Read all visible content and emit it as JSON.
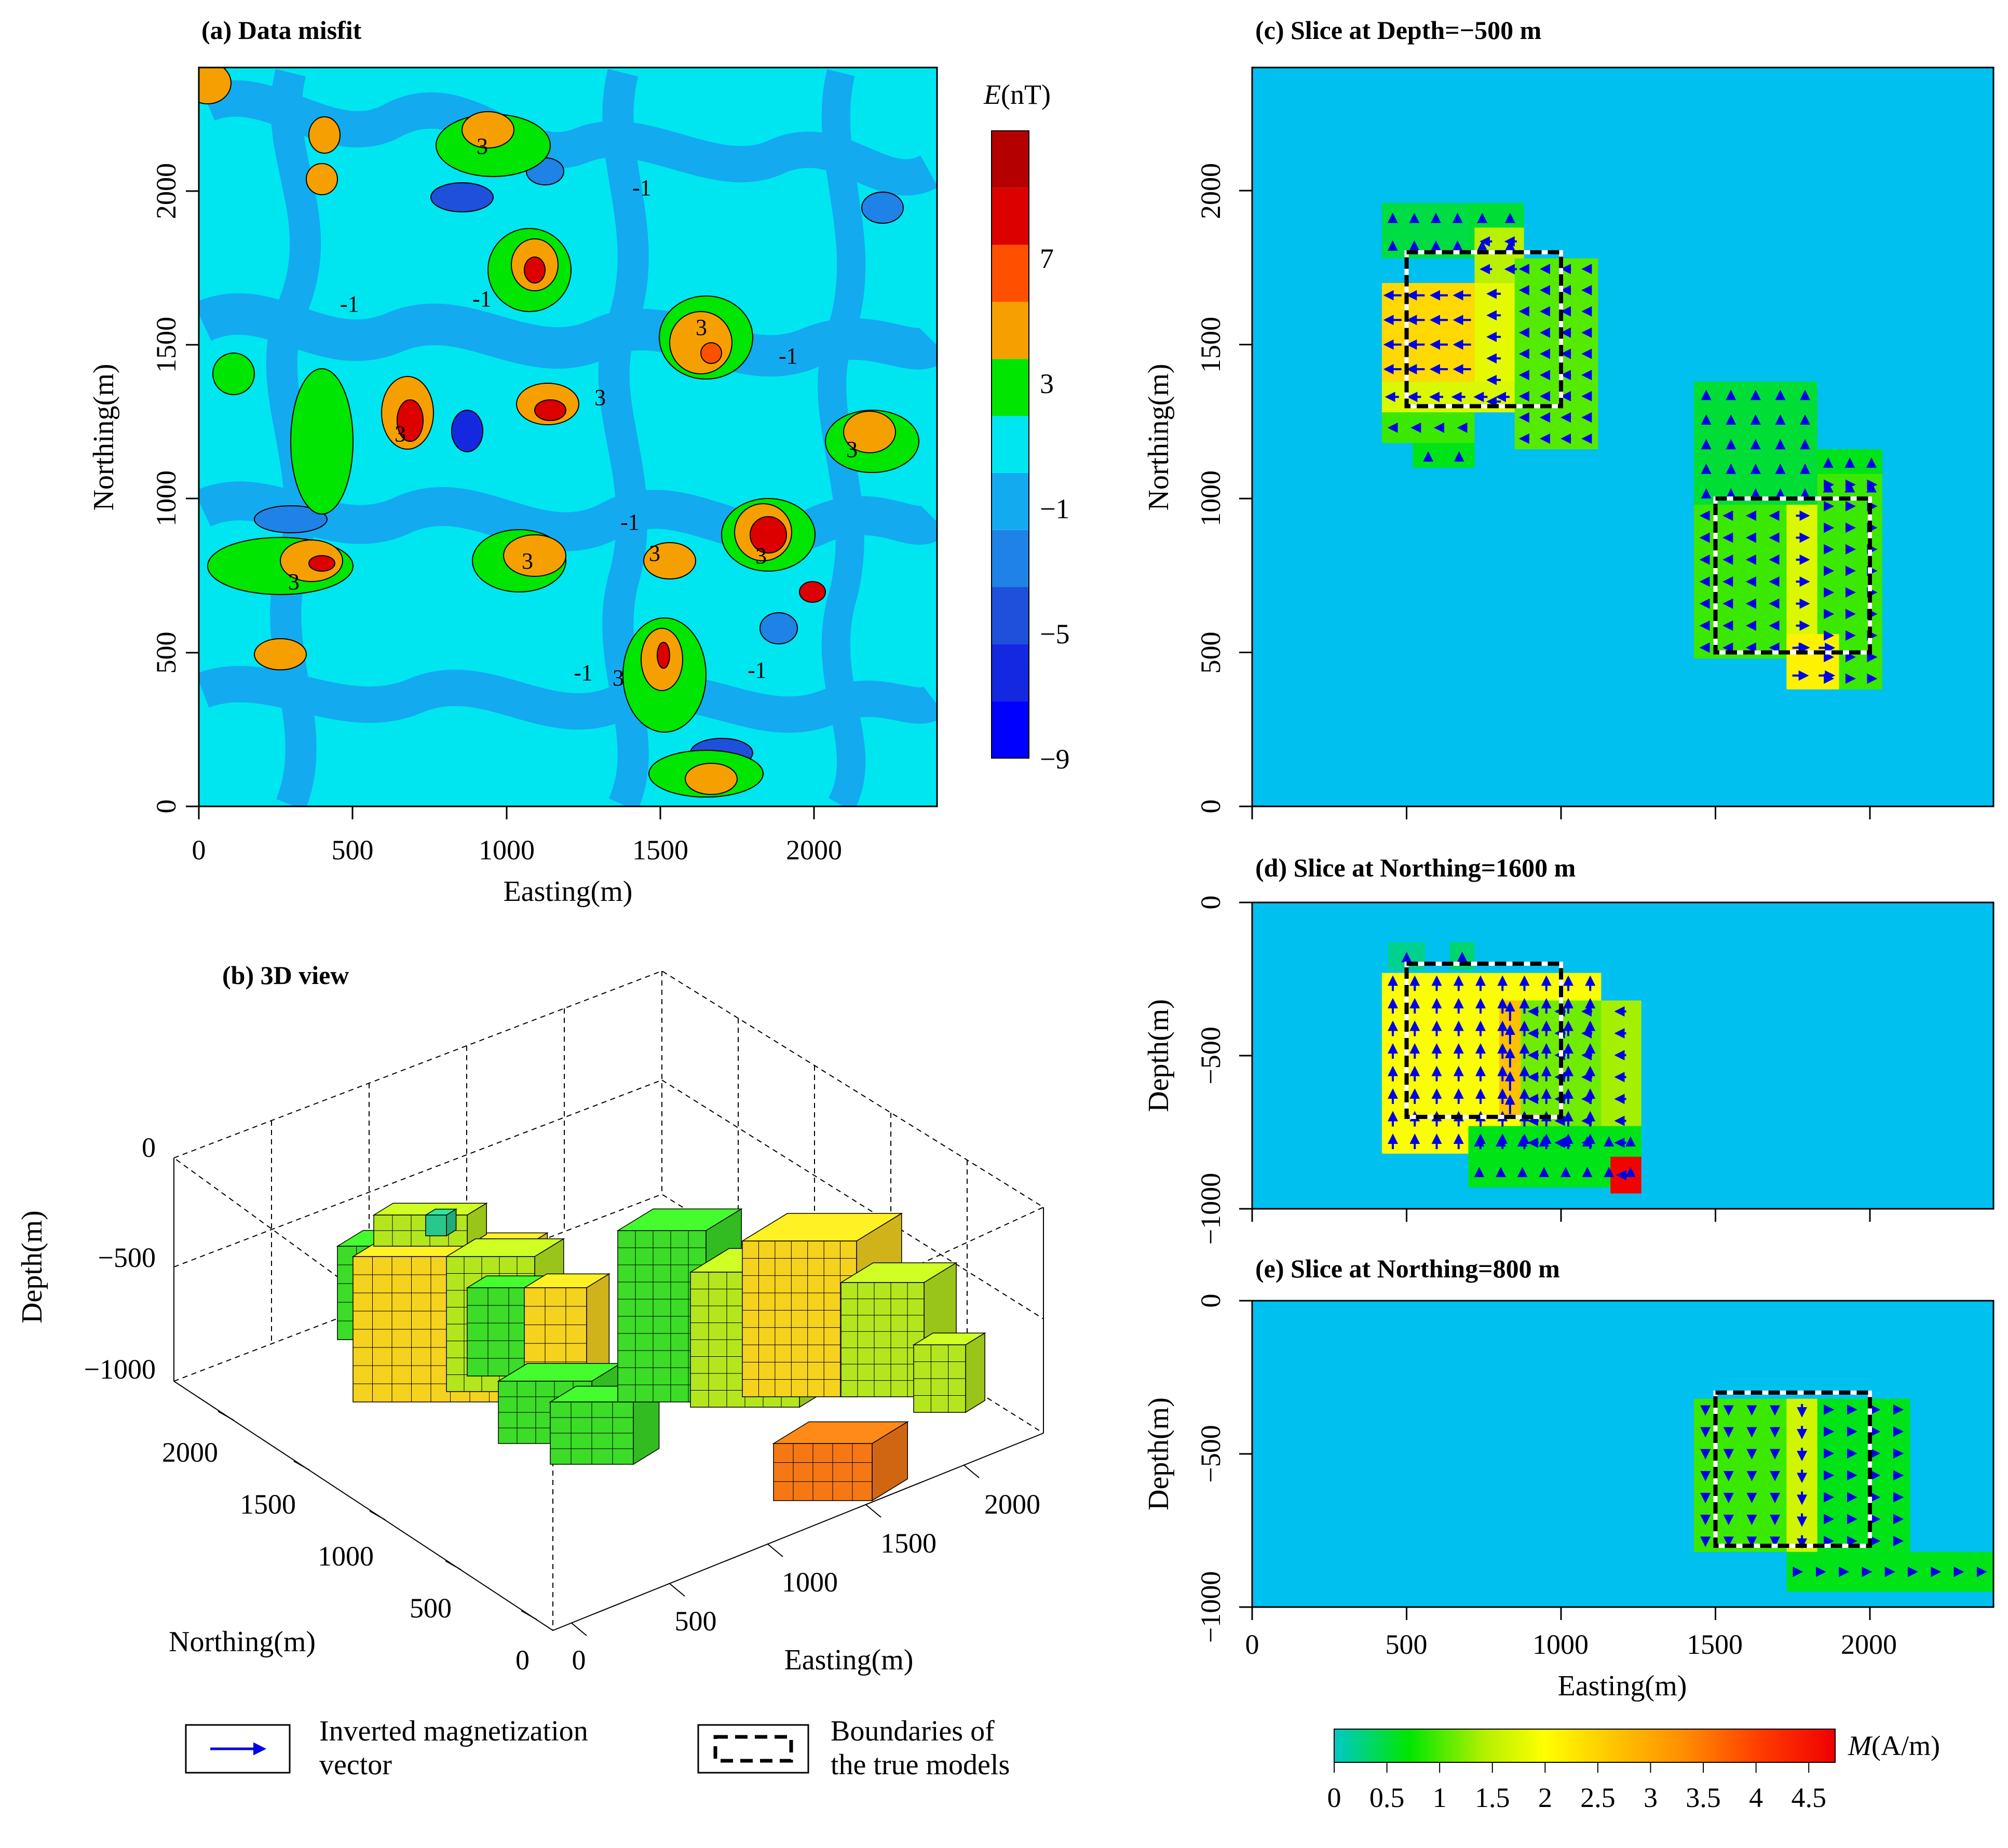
{
  "chart_data": [
    {
      "id": "a",
      "type": "heatmap",
      "title": "(a) Data misfit",
      "xlabel": "Easting(m)",
      "ylabel": "Northing(m)",
      "xlim": [
        0,
        2400
      ],
      "ylim": [
        0,
        2400
      ],
      "xticks": [
        "0",
        "500",
        "1000",
        "1500",
        "2000"
      ],
      "yticks": [
        "0",
        "500",
        "1000",
        "1500",
        "2000"
      ],
      "contour_labels": [
        "3",
        "-1",
        "-1",
        "3",
        "-1",
        "3",
        "3",
        "3",
        "-1",
        "3",
        "3",
        "3",
        "-1",
        "3",
        "-1",
        "-1",
        "3"
      ],
      "colorbar": {
        "title_var": "E",
        "title_unit": "(nT)",
        "levels": [
          -11,
          -9,
          -7,
          -5,
          -3,
          -1,
          1,
          3,
          5,
          7,
          9,
          11
        ],
        "tick_labels": [
          "7",
          "3",
          "−1",
          "−5",
          "−9"
        ],
        "colors": [
          "#0000ff",
          "#1428e0",
          "#1e50dc",
          "#1e82e6",
          "#14aaf0",
          "#00e6f0",
          "#00e600",
          "#f5a000",
          "#ff5000",
          "#dc0000",
          "#b40000"
        ]
      }
    },
    {
      "id": "b",
      "type": "scatter",
      "subtype": "3d-voxels",
      "title": "(b) 3D view",
      "zlabel": "Depth(m)",
      "ylabel": "Northing(m)",
      "xlabel": "Easting(m)",
      "zticks": [
        "0",
        "−500",
        "−1000"
      ],
      "yticks": [
        "0",
        "500",
        "1000",
        "1500",
        "2000"
      ],
      "xticks": [
        "0",
        "500",
        "1000",
        "1500",
        "2000"
      ],
      "body_colors": {
        "yellow": "#f5d21e",
        "lime": "#b4e61e",
        "green": "#3cdc28",
        "orange": "#f57814",
        "teal": "#28c88c"
      }
    },
    {
      "id": "c",
      "type": "heatmap",
      "title": "(c) Slice at Depth=−500 m",
      "ylabel": "Northing(m)",
      "xlim": [
        0,
        2400
      ],
      "ylim": [
        0,
        2400
      ],
      "yticks": [
        "0",
        "500",
        "1000",
        "1500",
        "2000"
      ],
      "background": "#00c0f0",
      "cells": [
        {
          "x0": 420,
          "x1": 700,
          "y0": 1780,
          "y1": 1960,
          "m": 0.45
        },
        {
          "x0": 700,
          "x1": 880,
          "y0": 1780,
          "y1": 1960,
          "m": 0.5
        },
        {
          "x0": 720,
          "x1": 880,
          "y0": 1700,
          "y1": 1880,
          "m": 1.4
        },
        {
          "x0": 420,
          "x1": 720,
          "y0": 1180,
          "y1": 1280,
          "m": 0.9
        },
        {
          "x0": 520,
          "x1": 720,
          "y0": 1100,
          "y1": 1180,
          "m": 0.6
        },
        {
          "x0": 420,
          "x1": 720,
          "y0": 1380,
          "y1": 1700,
          "m": 2.5
        },
        {
          "x0": 720,
          "x1": 850,
          "y0": 1280,
          "y1": 1700,
          "m": 1.8
        },
        {
          "x0": 420,
          "x1": 850,
          "y0": 1280,
          "y1": 1380,
          "m": 1.7
        },
        {
          "x0": 850,
          "x1": 1120,
          "y0": 1160,
          "y1": 1780,
          "m": 1.0
        },
        {
          "x0": 1430,
          "x1": 1830,
          "y0": 980,
          "y1": 1380,
          "m": 0.5
        },
        {
          "x0": 1830,
          "x1": 2040,
          "y0": 1000,
          "y1": 1160,
          "m": 0.6
        },
        {
          "x0": 1430,
          "x1": 1730,
          "y0": 480,
          "y1": 980,
          "m": 0.9
        },
        {
          "x0": 1730,
          "x1": 1830,
          "y0": 480,
          "y1": 980,
          "m": 1.7
        },
        {
          "x0": 1830,
          "x1": 2040,
          "y0": 380,
          "y1": 1080,
          "m": 0.9
        },
        {
          "x0": 1730,
          "x1": 1900,
          "y0": 380,
          "y1": 560,
          "m": 2.2
        }
      ],
      "true_boundaries": [
        {
          "x0": 500,
          "x1": 1000,
          "y0": 1300,
          "y1": 1800
        },
        {
          "x0": 1500,
          "x1": 2000,
          "y0": 500,
          "y1": 1000
        }
      ]
    },
    {
      "id": "d",
      "type": "heatmap",
      "title": "(d) Slice at Northing=1600 m",
      "ylabel": "Depth(m)",
      "xlim": [
        0,
        2400
      ],
      "ylim": [
        -1000,
        0
      ],
      "yticks": [
        "0",
        "−500",
        "−1000"
      ],
      "background": "#00c0f0",
      "cells": [
        {
          "x0": 440,
          "x1": 560,
          "y0": -220,
          "y1": -130,
          "m": 0.2
        },
        {
          "x0": 640,
          "x1": 720,
          "y0": -220,
          "y1": -130,
          "m": 0.3
        },
        {
          "x0": 420,
          "x1": 1130,
          "y0": -820,
          "y1": -230,
          "m": 2.0
        },
        {
          "x0": 800,
          "x1": 870,
          "y0": -700,
          "y1": -320,
          "m": 2.8
        },
        {
          "x0": 870,
          "x1": 1130,
          "y0": -820,
          "y1": -320,
          "m": 1.1
        },
        {
          "x0": 1130,
          "x1": 1260,
          "y0": -820,
          "y1": -320,
          "m": 1.3
        },
        {
          "x0": 700,
          "x1": 1260,
          "y0": -930,
          "y1": -730,
          "m": 0.6
        },
        {
          "x0": 1160,
          "x1": 1260,
          "y0": -950,
          "y1": -830,
          "m": 4.7
        }
      ],
      "true_boundaries": [
        {
          "x0": 500,
          "x1": 1000,
          "y0": -700,
          "y1": -200
        }
      ]
    },
    {
      "id": "e",
      "type": "heatmap",
      "title": "(e) Slice at Northing=800 m",
      "xlabel": "Easting(m)",
      "ylabel": "Depth(m)",
      "xlim": [
        0,
        2400
      ],
      "ylim": [
        -1000,
        0
      ],
      "xticks": [
        "0",
        "500",
        "1000",
        "1500",
        "2000"
      ],
      "yticks": [
        "0",
        "−500",
        "−1000"
      ],
      "background": "#00c0f0",
      "cells": [
        {
          "x0": 1430,
          "x1": 1730,
          "y0": -820,
          "y1": -320,
          "m": 0.9
        },
        {
          "x0": 1730,
          "x1": 1830,
          "y0": -820,
          "y1": -320,
          "m": 1.6
        },
        {
          "x0": 1830,
          "x1": 2130,
          "y0": -820,
          "y1": -320,
          "m": 0.6
        },
        {
          "x0": 1730,
          "x1": 2400,
          "y0": -950,
          "y1": -820,
          "m": 0.6
        }
      ],
      "true_boundaries": [
        {
          "x0": 1500,
          "x1": 2000,
          "y0": -800,
          "y1": -300
        }
      ]
    }
  ],
  "m_colorbar": {
    "title_var": "M",
    "title_unit": "(A/m)",
    "min": 0,
    "max": 4.75,
    "ticks": [
      "0",
      "0.5",
      "1",
      "1.5",
      "2",
      "2.5",
      "3",
      "3.5",
      "4",
      "4.5"
    ],
    "stops": [
      "#00c8c8",
      "#00e600",
      "#b4f000",
      "#ffff00",
      "#ffc800",
      "#ff8c00",
      "#ff3c00",
      "#f00000"
    ]
  },
  "legend": {
    "vector_label_1": "Inverted magnetization",
    "vector_label_2": "vector",
    "boundary_label_1": "Boundaries of",
    "boundary_label_2": "the true models"
  },
  "style": {
    "arrow_color": "#0000e6",
    "boundary_color": "#000000"
  }
}
